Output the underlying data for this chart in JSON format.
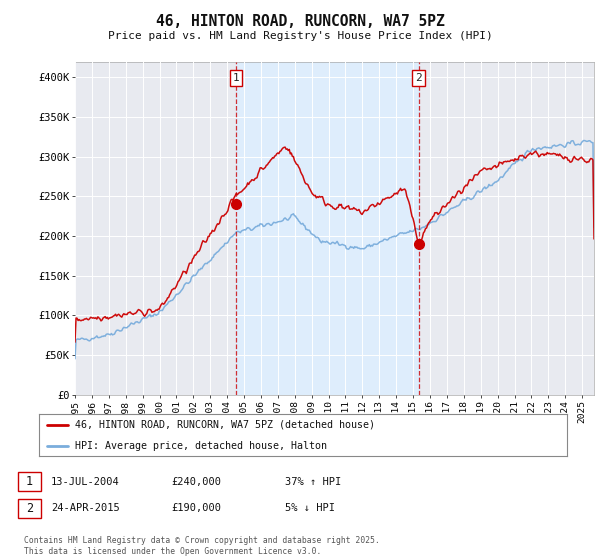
{
  "title": "46, HINTON ROAD, RUNCORN, WA7 5PZ",
  "subtitle": "Price paid vs. HM Land Registry's House Price Index (HPI)",
  "ylabel_ticks": [
    "£0",
    "£50K",
    "£100K",
    "£150K",
    "£200K",
    "£250K",
    "£300K",
    "£350K",
    "£400K"
  ],
  "ytick_values": [
    0,
    50000,
    100000,
    150000,
    200000,
    250000,
    300000,
    350000,
    400000
  ],
  "ylim": [
    0,
    420000
  ],
  "xlim_start": 1995.0,
  "xlim_end": 2025.7,
  "red_color": "#cc0000",
  "blue_color": "#7aaddc",
  "shade_color": "#ddeeff",
  "marker1_x": 2004.54,
  "marker1_y": 240000,
  "marker2_x": 2015.32,
  "marker2_y": 190000,
  "legend_label_red": "46, HINTON ROAD, RUNCORN, WA7 5PZ (detached house)",
  "legend_label_blue": "HPI: Average price, detached house, Halton",
  "annotation1_date": "13-JUL-2004",
  "annotation1_price": "£240,000",
  "annotation1_hpi": "37% ↑ HPI",
  "annotation2_date": "24-APR-2015",
  "annotation2_price": "£190,000",
  "annotation2_hpi": "5% ↓ HPI",
  "footer": "Contains HM Land Registry data © Crown copyright and database right 2025.\nThis data is licensed under the Open Government Licence v3.0.",
  "bg_color": "#ffffff",
  "plot_bg_color": "#e8eaf0"
}
